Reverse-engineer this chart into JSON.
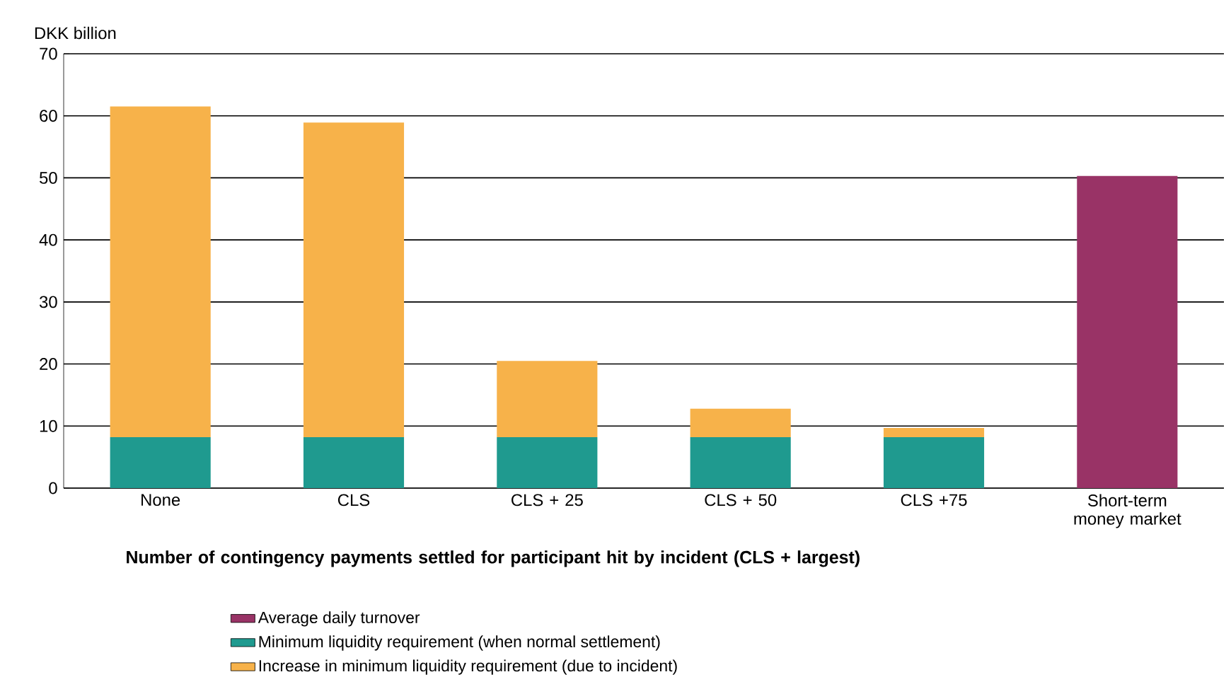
{
  "chart_data": {
    "type": "bar",
    "stacked": true,
    "ylabel": "DKK billion",
    "xlabel": "Number of contingency payments settled for participant hit by incident (CLS + largest)",
    "categories": [
      "None",
      "CLS",
      "CLS + 25",
      "CLS + 50",
      "CLS +75",
      "Short-term money market"
    ],
    "series": [
      {
        "name": "Average daily turnover",
        "color": "#993366",
        "values": [
          null,
          null,
          null,
          null,
          null,
          50.3
        ]
      },
      {
        "name": "Minimum liquidity requirement (when normal settlement)",
        "color": "#1f9a8f",
        "values": [
          8.2,
          8.2,
          8.2,
          8.2,
          8.2,
          null
        ]
      },
      {
        "name": "Increase in minimum liquidity requirement (due to incident)",
        "color": "#f7b24a",
        "values": [
          53.3,
          50.7,
          12.3,
          4.6,
          1.5,
          null
        ]
      }
    ],
    "ylim": [
      0,
      70
    ],
    "yticks": [
      0,
      10,
      20,
      30,
      40,
      50,
      60,
      70
    ],
    "grid": "y",
    "legend": "bottom"
  }
}
